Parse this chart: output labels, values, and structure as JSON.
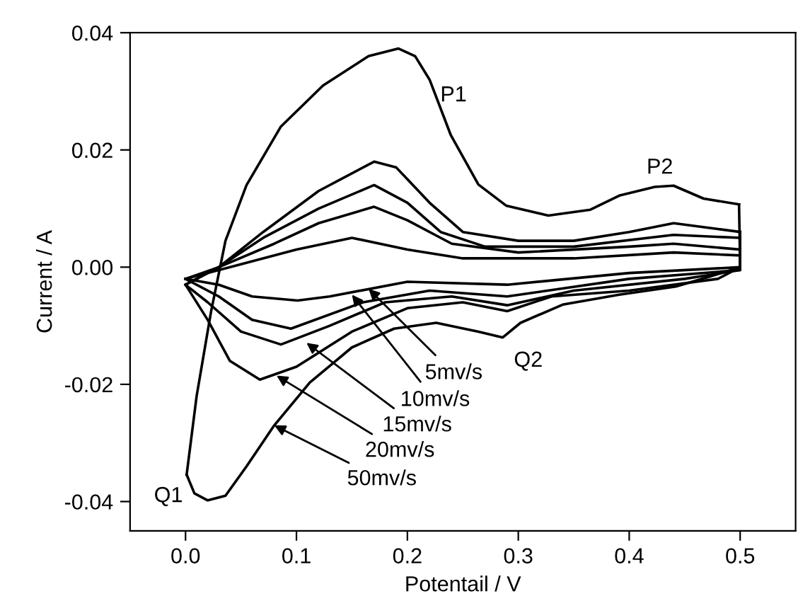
{
  "chart_data": {
    "type": "line",
    "xlabel": "Potentail / V",
    "ylabel": "Current / A",
    "xlim": [
      -0.05,
      0.55
    ],
    "ylim": [
      -0.045,
      0.04
    ],
    "xticks": [
      {
        "value": 0.0,
        "label": "0.0"
      },
      {
        "value": 0.1,
        "label": "0.1"
      },
      {
        "value": 0.2,
        "label": "0.2"
      },
      {
        "value": 0.3,
        "label": "0.3"
      },
      {
        "value": 0.4,
        "label": "0.4"
      },
      {
        "value": 0.5,
        "label": "0.5"
      }
    ],
    "yticks": [
      {
        "value": -0.04,
        "label": "-0.04"
      },
      {
        "value": -0.02,
        "label": "-0.02"
      },
      {
        "value": 0.0,
        "label": "0.00"
      },
      {
        "value": 0.02,
        "label": "0.02"
      },
      {
        "value": 0.04,
        "label": "0.04"
      }
    ],
    "grid": false,
    "legend": false,
    "marker": "none",
    "line_style": "solid",
    "series": [
      {
        "color": "#000000",
        "x": [
          0,
          0.05,
          0.1,
          0.15,
          0.2,
          0.25,
          0.35,
          0.44,
          0.5
        ],
        "values": [
          -0.002,
          0.0005,
          0.003,
          0.005,
          0.003,
          0.0015,
          0.0015,
          0.0025,
          0.002
        ]
      },
      {
        "color": "#000000",
        "x": [
          0.5,
          0.5,
          0.4,
          0.29,
          0.2,
          0.13,
          0.101,
          0.06,
          0.03,
          0
        ],
        "values": [
          0.002,
          0.0,
          -0.001,
          -0.003,
          -0.0025,
          -0.005,
          -0.0057,
          -0.005,
          -0.003,
          -0.002
        ]
      },
      {
        "color": "#000000",
        "x": [
          0,
          0.03,
          0.08,
          0.12,
          0.17,
          0.2,
          0.24,
          0.3,
          0.4,
          0.44,
          0.5
        ],
        "values": [
          -0.002,
          0.0,
          0.004,
          0.0075,
          0.0103,
          0.008,
          0.004,
          0.0025,
          0.0035,
          0.004,
          0.003
        ]
      },
      {
        "color": "#000000",
        "x": [
          0.5,
          0.5,
          0.4,
          0.29,
          0.22,
          0.16,
          0.095,
          0.06,
          0.03,
          0
        ],
        "values": [
          0.003,
          -0.0005,
          -0.002,
          -0.005,
          -0.004,
          -0.006,
          -0.0105,
          -0.009,
          -0.005,
          -0.002
        ]
      },
      {
        "color": "#000000",
        "x": [
          0,
          0.03,
          0.07,
          0.12,
          0.17,
          0.2,
          0.23,
          0.27,
          0.35,
          0.44,
          0.5
        ],
        "values": [
          -0.003,
          0.0,
          0.005,
          0.01,
          0.014,
          0.011,
          0.006,
          0.0035,
          0.0035,
          0.0055,
          0.005
        ]
      },
      {
        "color": "#000000",
        "x": [
          0.5,
          0.5,
          0.45,
          0.35,
          0.29,
          0.24,
          0.18,
          0.13,
          0.086,
          0.05,
          0.02,
          0
        ],
        "values": [
          0.005,
          -0.0005,
          -0.002,
          -0.004,
          -0.0065,
          -0.005,
          -0.006,
          -0.01,
          -0.0132,
          -0.011,
          -0.006,
          -0.003
        ]
      },
      {
        "color": "#000000",
        "x": [
          0,
          0.03,
          0.07,
          0.12,
          0.17,
          0.19,
          0.22,
          0.25,
          0.3,
          0.35,
          0.4,
          0.44,
          0.48,
          0.5
        ],
        "values": [
          -0.003,
          0.0,
          0.006,
          0.013,
          0.018,
          0.017,
          0.011,
          0.006,
          0.0045,
          0.0045,
          0.006,
          0.0075,
          0.0065,
          0.006
        ]
      },
      {
        "color": "#000000",
        "x": [
          0.5,
          0.5,
          0.48,
          0.4,
          0.33,
          0.29,
          0.25,
          0.2,
          0.15,
          0.1,
          0.067,
          0.04,
          0.02,
          0
        ],
        "values": [
          0.006,
          0.0,
          -0.002,
          -0.004,
          -0.005,
          -0.0075,
          -0.006,
          -0.007,
          -0.011,
          -0.017,
          -0.0192,
          -0.016,
          -0.009,
          -0.003
        ]
      },
      {
        "color": "#000000",
        "x": [
          0.001,
          0.01,
          0.023,
          0.036,
          0.055,
          0.086,
          0.124,
          0.165,
          0.192,
          0.207,
          0.22,
          0.239,
          0.264,
          0.289,
          0.327,
          0.365,
          0.391,
          0.423,
          0.44,
          0.467,
          0.499
        ],
        "values": [
          -0.0354,
          -0.022,
          -0.0076,
          0.0045,
          0.014,
          0.024,
          0.031,
          0.036,
          0.0373,
          0.036,
          0.032,
          0.0226,
          0.0141,
          0.0105,
          0.0088,
          0.0098,
          0.0122,
          0.0137,
          0.0139,
          0.0117,
          0.0107
        ]
      },
      {
        "color": "#000000",
        "x": [
          0.499,
          0.5,
          0.473,
          0.442,
          0.391,
          0.34,
          0.302,
          0.286,
          0.264,
          0.226,
          0.188,
          0.15,
          0.112,
          0.08,
          0.055,
          0.036,
          0.02,
          0.008,
          0.001
        ],
        "values": [
          0.0107,
          0.0,
          -0.0016,
          -0.0033,
          -0.0047,
          -0.0064,
          -0.0095,
          -0.012,
          -0.011,
          -0.0095,
          -0.0105,
          -0.0137,
          -0.0197,
          -0.027,
          -0.034,
          -0.039,
          -0.0398,
          -0.0386,
          -0.0354
        ]
      }
    ],
    "annotations": [
      {
        "text": "P1",
        "x": 0.192,
        "y": 0.0373
      },
      {
        "text": "P2",
        "x": 0.44,
        "y": 0.0139
      },
      {
        "text": "Q1",
        "x": 0.02,
        "y": -0.0398
      },
      {
        "text": "Q2",
        "x": 0.286,
        "y": -0.012
      },
      {
        "text": "5mv/s",
        "x": 0.165,
        "y": -0.0037
      },
      {
        "text": "10mv/s",
        "x": 0.15,
        "y": -0.0047
      },
      {
        "text": "15mv/s",
        "x": 0.109,
        "y": -0.0129
      },
      {
        "text": "20mv/s",
        "x": 0.082,
        "y": -0.0185
      },
      {
        "text": "50mv/s",
        "x": 0.08,
        "y": -0.027
      }
    ]
  }
}
